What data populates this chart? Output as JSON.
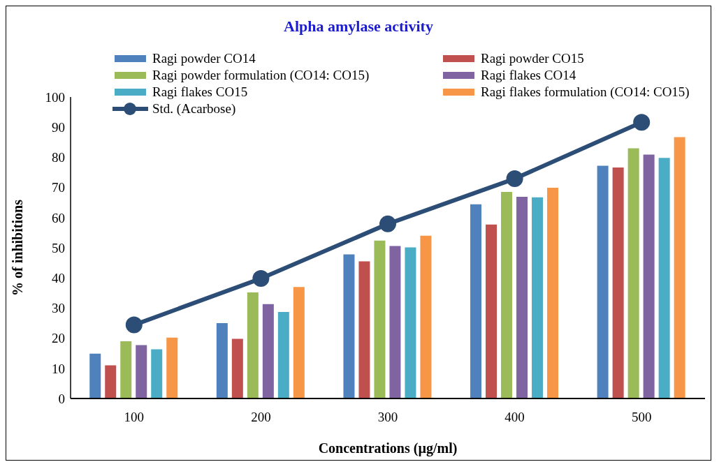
{
  "chart_data": {
    "type": "bar",
    "title": "Alpha amylase activity",
    "xlabel": "Concentrations (µg/ml)",
    "ylabel": "% of inhibitions",
    "categories": [
      "100",
      "200",
      "300",
      "400",
      "500"
    ],
    "series": [
      {
        "name": "Ragi powder CO14",
        "color": "#4f81bd",
        "values": [
          14.9,
          25,
          47.8,
          64.4,
          77.2
        ]
      },
      {
        "name": "Ragi powder CO15",
        "color": "#c0504d",
        "values": [
          11,
          19.8,
          45.5,
          57.7,
          76.6
        ]
      },
      {
        "name": "Ragi powder formulation (CO14: CO15)",
        "color": "#9bbb59",
        "values": [
          19,
          35.2,
          52.4,
          68.5,
          83
        ]
      },
      {
        "name": "Ragi flakes CO14",
        "color": "#8064a2",
        "values": [
          17.7,
          31.3,
          50.6,
          66.9,
          80.9
        ]
      },
      {
        "name": "Ragi flakes CO15",
        "color": "#4bacc6",
        "values": [
          16.3,
          28.7,
          50.1,
          66.7,
          79.8
        ]
      },
      {
        "name": "Ragi flakes formulation (CO14: CO15)",
        "color": "#f79646",
        "values": [
          20.2,
          37,
          54,
          69.9,
          86.7
        ]
      },
      {
        "name": "Std. (Acarbose)",
        "type": "line",
        "color": "#2c4d75",
        "marker": "circle",
        "values": [
          24.4,
          39.8,
          57.9,
          72.9,
          91.6
        ]
      }
    ],
    "ylim": [
      0,
      100
    ],
    "yticks": [
      0,
      10,
      20,
      30,
      40,
      50,
      60,
      70,
      80,
      90,
      100
    ],
    "legend": "top"
  }
}
